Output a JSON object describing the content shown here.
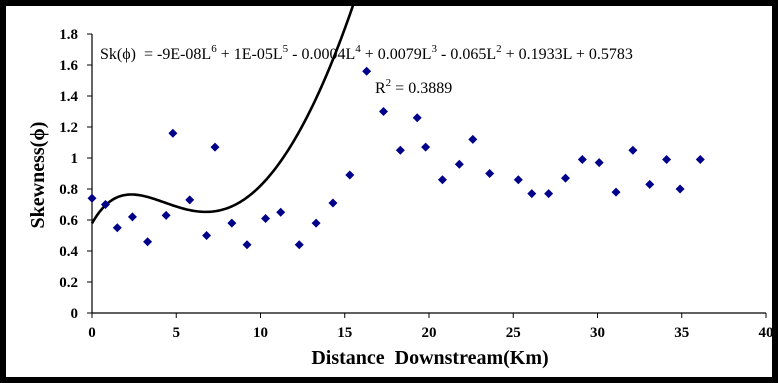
{
  "chart_data": {
    "type": "scatter",
    "title": "",
    "xlabel": "Distance  Downstream(Km)",
    "ylabel": "Skewness(ϕ)",
    "xlim": [
      0,
      40
    ],
    "ylim": [
      0,
      1.8
    ],
    "xticks": [
      "0",
      "5",
      "10",
      "15",
      "20",
      "25",
      "30",
      "35",
      "40"
    ],
    "yticks": [
      "0",
      "0.2",
      "0.4",
      "0.6",
      "0.8",
      "1",
      "1.2",
      "1.4",
      "1.6",
      "1.8"
    ],
    "grid": false,
    "legend": "none",
    "marker_color": "#00008B",
    "trendline_color": "#000000",
    "equation": {
      "prefix": "Sk(ϕ)  = -9E-08L",
      "exp1": "6",
      "t2": " + 1E-05L",
      "exp2": "5",
      "t3": " - 0.0004L",
      "exp3": "4",
      "t4": " + 0.0079L",
      "exp4": "3",
      "t5": " - 0.065L",
      "exp5": "2",
      "t6": " + 0.1933L + 0.5783"
    },
    "r_squared": {
      "label": "R",
      "exp": "2",
      "value": " = 0.3889"
    },
    "trendline": {
      "degree": 6,
      "coefficients": [
        0.5783,
        0.1933,
        -0.065,
        0.0079,
        -0.0004,
        1e-05,
        -9e-08
      ]
    },
    "series": [
      {
        "x": [
          0.0,
          0.8,
          1.5,
          2.4,
          3.3,
          4.4,
          4.8,
          5.8,
          6.8,
          7.3,
          8.3,
          9.2,
          10.3,
          11.2,
          12.3,
          13.3,
          14.3,
          15.3,
          16.3,
          17.3,
          18.3,
          19.3,
          19.8,
          20.8,
          21.8,
          22.6,
          23.6,
          25.3,
          26.1,
          27.1,
          28.1,
          29.1,
          30.1,
          31.1,
          32.1,
          33.1,
          34.1,
          34.9,
          36.1
        ],
        "y": [
          0.74,
          0.7,
          0.55,
          0.62,
          0.46,
          0.63,
          1.16,
          0.73,
          0.5,
          1.07,
          0.58,
          0.44,
          0.61,
          0.65,
          0.44,
          0.58,
          0.71,
          0.89,
          1.56,
          1.3,
          1.05,
          1.26,
          1.07,
          0.86,
          0.96,
          1.12,
          0.9,
          0.86,
          0.77,
          0.77,
          0.87,
          0.99,
          0.97,
          0.78,
          1.05,
          0.83,
          0.99,
          0.8,
          0.99
        ]
      }
    ]
  }
}
